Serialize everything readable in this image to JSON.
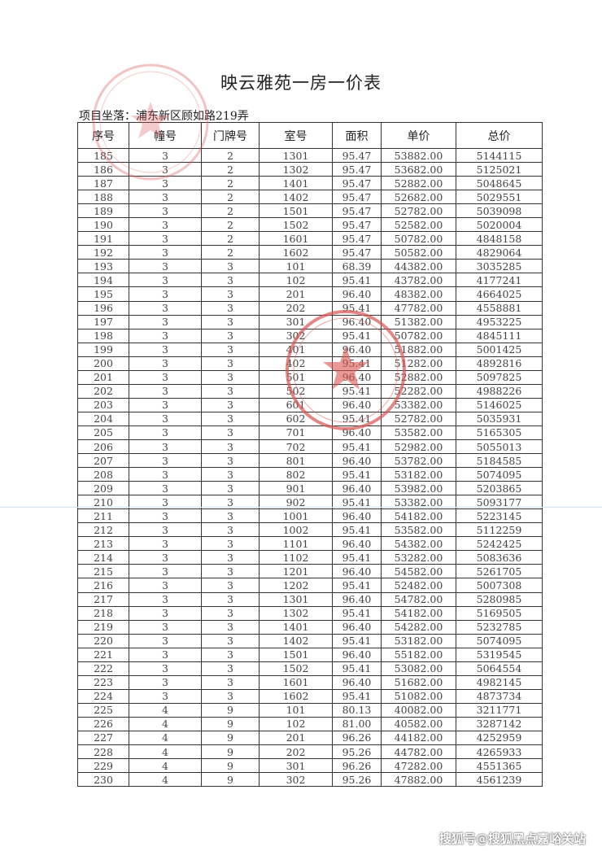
{
  "document": {
    "title": "映云雅苑一房一价表",
    "project_location": "项目坐落：浦东新区顾如路219弄",
    "columns": [
      "序号",
      "幢号",
      "门牌号",
      "室号",
      "面积",
      "单价",
      "总价"
    ],
    "rows": [
      [
        "185",
        "3",
        "2",
        "1301",
        "95.47",
        "53882.00",
        "5144115"
      ],
      [
        "186",
        "3",
        "2",
        "1302",
        "95.47",
        "53682.00",
        "5125021"
      ],
      [
        "187",
        "3",
        "2",
        "1401",
        "95.47",
        "52882.00",
        "5048645"
      ],
      [
        "188",
        "3",
        "2",
        "1402",
        "95.47",
        "52682.00",
        "5029551"
      ],
      [
        "189",
        "3",
        "2",
        "1501",
        "95.47",
        "52782.00",
        "5039098"
      ],
      [
        "190",
        "3",
        "2",
        "1502",
        "95.47",
        "52582.00",
        "5020004"
      ],
      [
        "191",
        "3",
        "2",
        "1601",
        "95.47",
        "50782.00",
        "4848158"
      ],
      [
        "192",
        "3",
        "2",
        "1602",
        "95.47",
        "50582.00",
        "4829064"
      ],
      [
        "193",
        "3",
        "3",
        "101",
        "68.39",
        "44382.00",
        "3035285"
      ],
      [
        "194",
        "3",
        "3",
        "102",
        "95.41",
        "43782.00",
        "4177241"
      ],
      [
        "195",
        "3",
        "3",
        "201",
        "96.40",
        "48382.00",
        "4664025"
      ],
      [
        "196",
        "3",
        "3",
        "202",
        "95.41",
        "47782.00",
        "4558881"
      ],
      [
        "197",
        "3",
        "3",
        "301",
        "96.40",
        "51382.00",
        "4953225"
      ],
      [
        "198",
        "3",
        "3",
        "302",
        "95.41",
        "50782.00",
        "4845111"
      ],
      [
        "199",
        "3",
        "3",
        "401",
        "96.40",
        "51882.00",
        "5001425"
      ],
      [
        "200",
        "3",
        "3",
        "402",
        "95.41",
        "51282.00",
        "4892816"
      ],
      [
        "201",
        "3",
        "3",
        "501",
        "96.40",
        "52882.00",
        "5097825"
      ],
      [
        "202",
        "3",
        "3",
        "502",
        "95.41",
        "52282.00",
        "4988226"
      ],
      [
        "203",
        "3",
        "3",
        "601",
        "96.40",
        "53382.00",
        "5146025"
      ],
      [
        "204",
        "3",
        "3",
        "602",
        "95.41",
        "52782.00",
        "5035931"
      ],
      [
        "205",
        "3",
        "3",
        "701",
        "96.40",
        "53582.00",
        "5165305"
      ],
      [
        "206",
        "3",
        "3",
        "702",
        "95.41",
        "52982.00",
        "5055013"
      ],
      [
        "207",
        "3",
        "3",
        "801",
        "96.40",
        "53782.00",
        "5184585"
      ],
      [
        "208",
        "3",
        "3",
        "802",
        "95.41",
        "53182.00",
        "5074095"
      ],
      [
        "209",
        "3",
        "3",
        "901",
        "96.40",
        "53982.00",
        "5203865"
      ],
      [
        "210",
        "3",
        "3",
        "902",
        "95.41",
        "53382.00",
        "5093177"
      ],
      [
        "211",
        "3",
        "3",
        "1001",
        "96.40",
        "54182.00",
        "5223145"
      ],
      [
        "212",
        "3",
        "3",
        "1002",
        "95.41",
        "53582.00",
        "5112259"
      ],
      [
        "213",
        "3",
        "3",
        "1101",
        "96.40",
        "54382.00",
        "5242425"
      ],
      [
        "214",
        "3",
        "3",
        "1102",
        "95.41",
        "53282.00",
        "5083636"
      ],
      [
        "215",
        "3",
        "3",
        "1201",
        "96.40",
        "54582.00",
        "5261705"
      ],
      [
        "216",
        "3",
        "3",
        "1202",
        "95.41",
        "52482.00",
        "5007308"
      ],
      [
        "217",
        "3",
        "3",
        "1301",
        "96.40",
        "54782.00",
        "5280985"
      ],
      [
        "218",
        "3",
        "3",
        "1302",
        "95.41",
        "54182.00",
        "5169505"
      ],
      [
        "219",
        "3",
        "3",
        "1401",
        "96.40",
        "54282.00",
        "5232785"
      ],
      [
        "220",
        "3",
        "3",
        "1402",
        "95.41",
        "53182.00",
        "5074095"
      ],
      [
        "221",
        "3",
        "3",
        "1501",
        "96.40",
        "55182.00",
        "5319545"
      ],
      [
        "222",
        "3",
        "3",
        "1502",
        "95.41",
        "53082.00",
        "5064554"
      ],
      [
        "223",
        "3",
        "3",
        "1601",
        "96.40",
        "51682.00",
        "4982145"
      ],
      [
        "224",
        "3",
        "3",
        "1602",
        "95.41",
        "51082.00",
        "4873734"
      ],
      [
        "225",
        "4",
        "9",
        "101",
        "80.13",
        "40082.00",
        "3211771"
      ],
      [
        "226",
        "4",
        "9",
        "102",
        "81.00",
        "40582.00",
        "3287142"
      ],
      [
        "227",
        "4",
        "9",
        "201",
        "96.26",
        "44182.00",
        "4252959"
      ],
      [
        "228",
        "4",
        "9",
        "202",
        "95.26",
        "44782.00",
        "4265933"
      ],
      [
        "229",
        "4",
        "9",
        "301",
        "96.26",
        "47282.00",
        "4551365"
      ],
      [
        "230",
        "4",
        "9",
        "302",
        "95.26",
        "47882.00",
        "4561239"
      ]
    ]
  },
  "watermark": "搜狐号@搜狐黑点嘉峪关站",
  "colors": {
    "stamp": "#d9534f",
    "text": "#333333"
  }
}
